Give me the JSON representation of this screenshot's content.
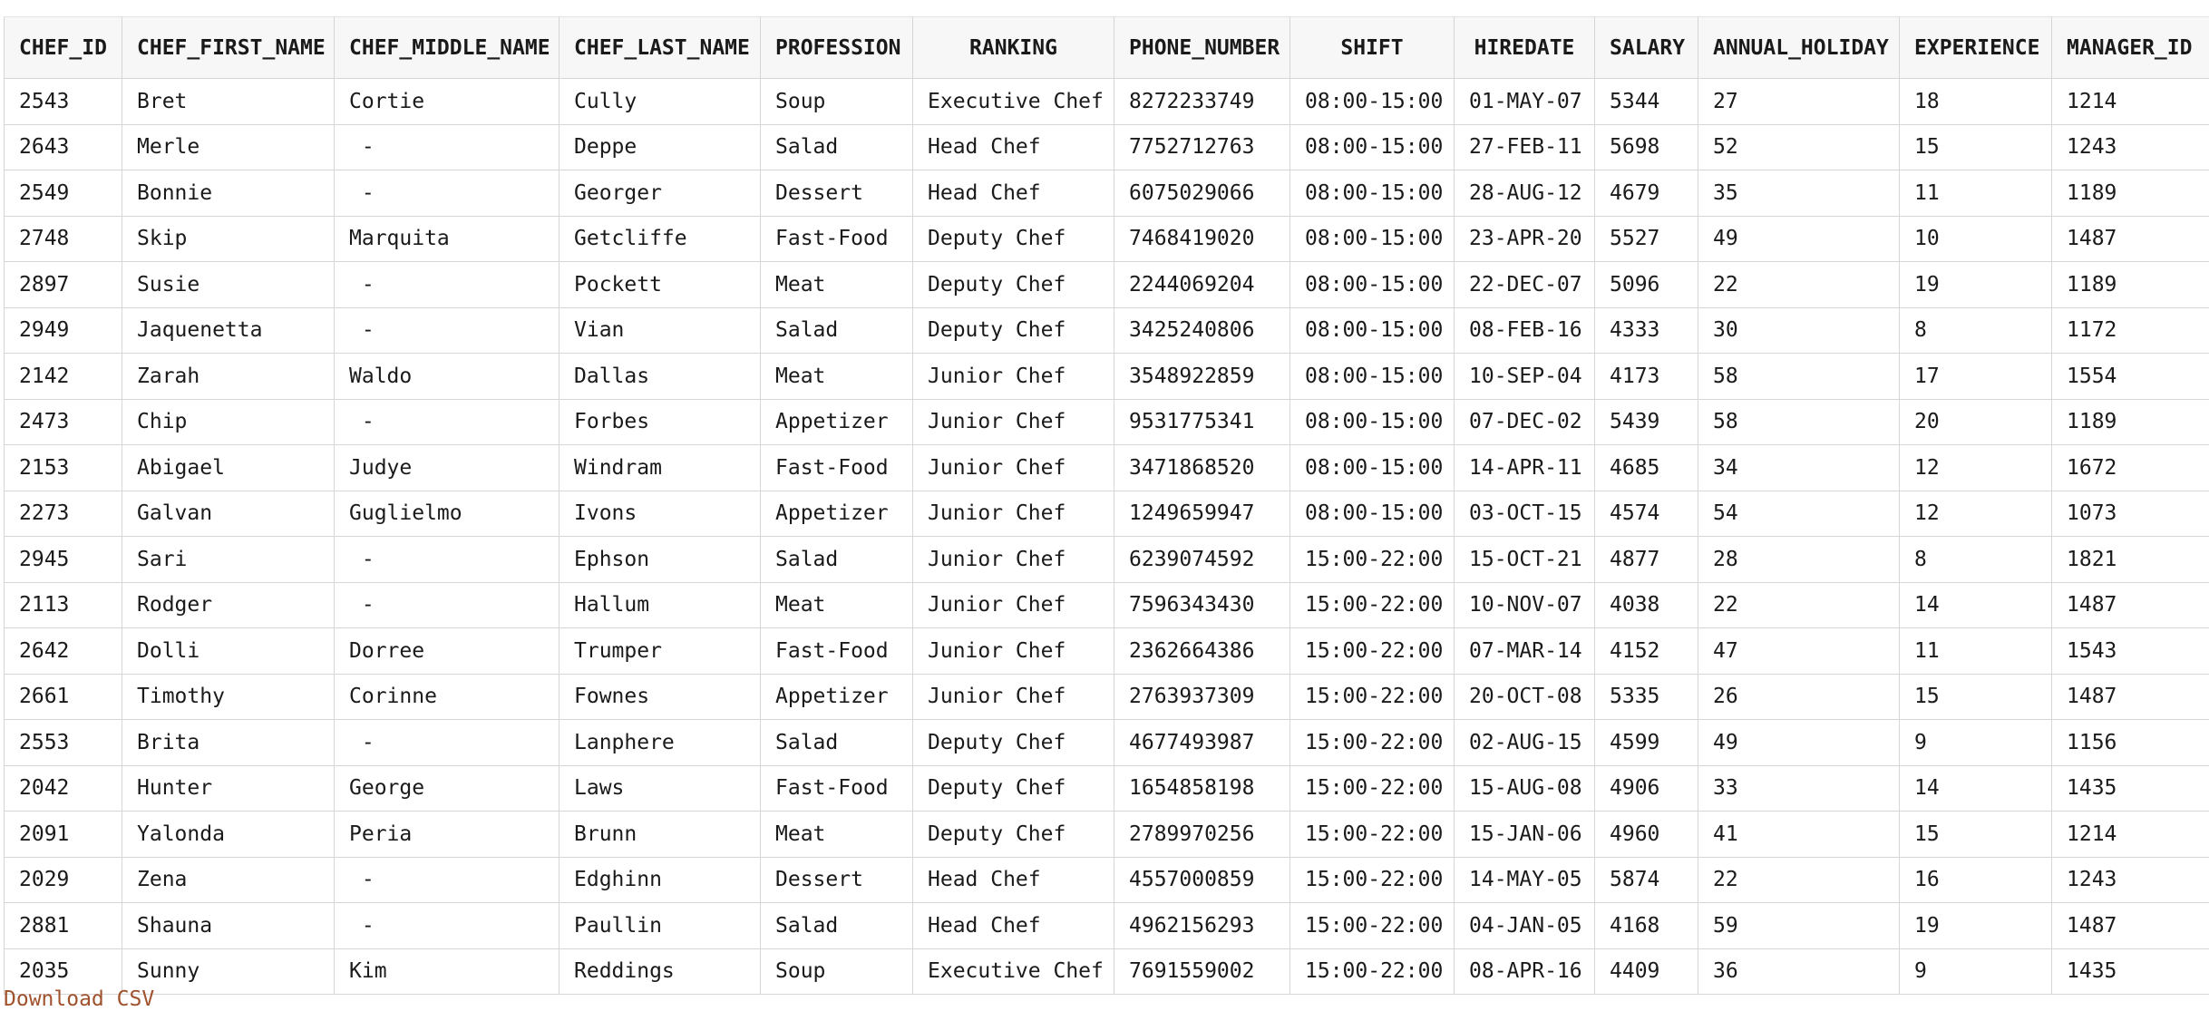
{
  "table": {
    "columns": [
      "CHEF_ID",
      "CHEF_FIRST_NAME",
      "CHEF_MIDDLE_NAME",
      "CHEF_LAST_NAME",
      "PROFESSION",
      "RANKING",
      "PHONE_NUMBER",
      "SHIFT",
      "HIREDATE",
      "SALARY",
      "ANNUAL_HOLIDAY",
      "EXPERIENCE",
      "MANAGER_ID"
    ],
    "rows": [
      [
        "2543",
        "Bret",
        "Cortie",
        "Cully",
        "Soup",
        "Executive Chef",
        "8272233749",
        "08:00-15:00",
        "01-MAY-07",
        "5344",
        "27",
        "18",
        "1214"
      ],
      [
        "2643",
        "Merle",
        " -",
        "Deppe",
        "Salad",
        "Head Chef",
        "7752712763",
        "08:00-15:00",
        "27-FEB-11",
        "5698",
        "52",
        "15",
        "1243"
      ],
      [
        "2549",
        "Bonnie",
        " -",
        "Georger",
        "Dessert",
        "Head Chef",
        "6075029066",
        "08:00-15:00",
        "28-AUG-12",
        "4679",
        "35",
        "11",
        "1189"
      ],
      [
        "2748",
        "Skip",
        "Marquita",
        "Getcliffe",
        "Fast-Food",
        "Deputy Chef",
        "7468419020",
        "08:00-15:00",
        "23-APR-20",
        "5527",
        "49",
        "10",
        "1487"
      ],
      [
        "2897",
        "Susie",
        " -",
        "Pockett",
        "Meat",
        "Deputy Chef",
        "2244069204",
        "08:00-15:00",
        "22-DEC-07",
        "5096",
        "22",
        "19",
        "1189"
      ],
      [
        "2949",
        "Jaquenetta",
        " -",
        "Vian",
        "Salad",
        "Deputy Chef",
        "3425240806",
        "08:00-15:00",
        "08-FEB-16",
        "4333",
        "30",
        "8",
        "1172"
      ],
      [
        "2142",
        "Zarah",
        "Waldo",
        "Dallas",
        "Meat",
        "Junior Chef",
        "3548922859",
        "08:00-15:00",
        "10-SEP-04",
        "4173",
        "58",
        "17",
        "1554"
      ],
      [
        "2473",
        "Chip",
        " -",
        "Forbes",
        "Appetizer",
        "Junior Chef",
        "9531775341",
        "08:00-15:00",
        "07-DEC-02",
        "5439",
        "58",
        "20",
        "1189"
      ],
      [
        "2153",
        "Abigael",
        "Judye",
        "Windram",
        "Fast-Food",
        "Junior Chef",
        "3471868520",
        "08:00-15:00",
        "14-APR-11",
        "4685",
        "34",
        "12",
        "1672"
      ],
      [
        "2273",
        "Galvan",
        "Guglielmo",
        "Ivons",
        "Appetizer",
        "Junior Chef",
        "1249659947",
        "08:00-15:00",
        "03-OCT-15",
        "4574",
        "54",
        "12",
        "1073"
      ],
      [
        "2945",
        "Sari",
        " -",
        "Ephson",
        "Salad",
        "Junior Chef",
        "6239074592",
        "15:00-22:00",
        "15-OCT-21",
        "4877",
        "28",
        "8",
        "1821"
      ],
      [
        "2113",
        "Rodger",
        " -",
        "Hallum",
        "Meat",
        "Junior Chef",
        "7596343430",
        "15:00-22:00",
        "10-NOV-07",
        "4038",
        "22",
        "14",
        "1487"
      ],
      [
        "2642",
        "Dolli",
        "Dorree",
        "Trumper",
        "Fast-Food",
        "Junior Chef",
        "2362664386",
        "15:00-22:00",
        "07-MAR-14",
        "4152",
        "47",
        "11",
        "1543"
      ],
      [
        "2661",
        "Timothy",
        "Corinne",
        "Fownes",
        "Appetizer",
        "Junior Chef",
        "2763937309",
        "15:00-22:00",
        "20-OCT-08",
        "5335",
        "26",
        "15",
        "1487"
      ],
      [
        "2553",
        "Brita",
        " -",
        "Lanphere",
        "Salad",
        "Deputy Chef",
        "4677493987",
        "15:00-22:00",
        "02-AUG-15",
        "4599",
        "49",
        "9",
        "1156"
      ],
      [
        "2042",
        "Hunter",
        "George",
        "Laws",
        "Fast-Food",
        "Deputy Chef",
        "1654858198",
        "15:00-22:00",
        "15-AUG-08",
        "4906",
        "33",
        "14",
        "1435"
      ],
      [
        "2091",
        "Yalonda",
        "Peria",
        "Brunn",
        "Meat",
        "Deputy Chef",
        "2789970256",
        "15:00-22:00",
        "15-JAN-06",
        "4960",
        "41",
        "15",
        "1214"
      ],
      [
        "2029",
        "Zena",
        " -",
        "Edghinn",
        "Dessert",
        "Head Chef",
        "4557000859",
        "15:00-22:00",
        "14-MAY-05",
        "5874",
        "22",
        "16",
        "1243"
      ],
      [
        "2881",
        "Shauna",
        " -",
        "Paullin",
        "Salad",
        "Head Chef",
        "4962156293",
        "15:00-22:00",
        "04-JAN-05",
        "4168",
        "59",
        "19",
        "1487"
      ],
      [
        "2035",
        "Sunny",
        "Kim",
        "Reddings",
        "Soup",
        "Executive Chef",
        "7691559002",
        "15:00-22:00",
        "08-APR-16",
        "4409",
        "36",
        "9",
        "1435"
      ]
    ]
  },
  "download_link": {
    "label": "Download CSV"
  },
  "colors": {
    "link": "#a0522d",
    "header_bg": "#f7f7f7",
    "grid_line": "#d6d6d6"
  }
}
